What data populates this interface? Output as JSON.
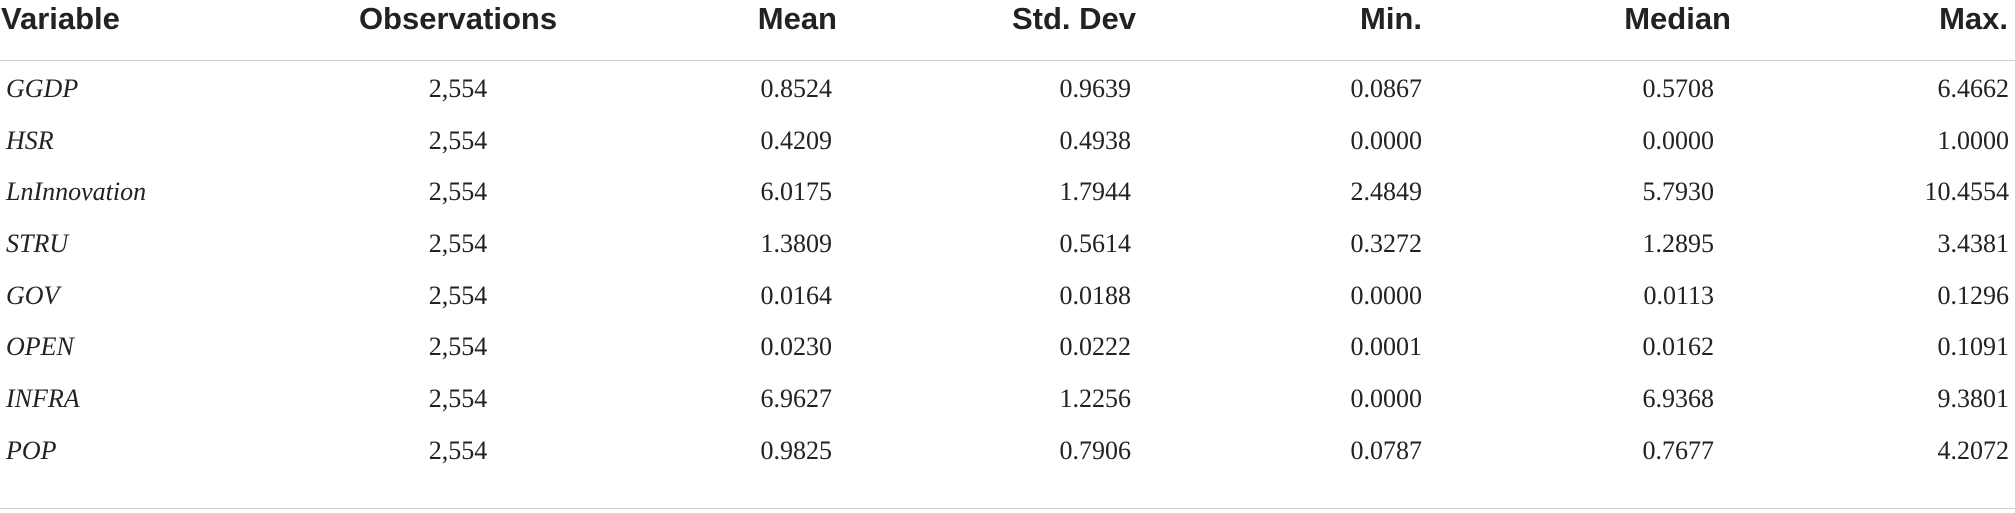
{
  "table": {
    "headers": [
      "Variable",
      "Observations",
      "Mean",
      "Std. Dev",
      "Min.",
      "Median",
      "Max."
    ],
    "rows": [
      {
        "variable": "GGDP",
        "obs": "2,554",
        "mean": "0.8524",
        "sd": "0.9639",
        "min": "0.0867",
        "median": "0.5708",
        "max": "6.4662"
      },
      {
        "variable": "HSR",
        "obs": "2,554",
        "mean": "0.4209",
        "sd": "0.4938",
        "min": "0.0000",
        "median": "0.0000",
        "max": "1.0000"
      },
      {
        "variable": "LnInnovation",
        "obs": "2,554",
        "mean": "6.0175",
        "sd": "1.7944",
        "min": "2.4849",
        "median": "5.7930",
        "max": "10.4554"
      },
      {
        "variable": "STRU",
        "obs": "2,554",
        "mean": "1.3809",
        "sd": "0.5614",
        "min": "0.3272",
        "median": "1.2895",
        "max": "3.4381"
      },
      {
        "variable": "GOV",
        "obs": "2,554",
        "mean": "0.0164",
        "sd": "0.0188",
        "min": "0.0000",
        "median": "0.0113",
        "max": "0.1296"
      },
      {
        "variable": "OPEN",
        "obs": "2,554",
        "mean": "0.0230",
        "sd": "0.0222",
        "min": "0.0001",
        "median": "0.0162",
        "max": "0.1091"
      },
      {
        "variable": "INFRA",
        "obs": "2,554",
        "mean": "6.9627",
        "sd": "1.2256",
        "min": "0.0000",
        "median": "6.9368",
        "max": "9.3801"
      },
      {
        "variable": "POP",
        "obs": "2,554",
        "mean": "0.9825",
        "sd": "0.7906",
        "min": "0.0787",
        "median": "0.7677",
        "max": "4.2072"
      }
    ]
  }
}
